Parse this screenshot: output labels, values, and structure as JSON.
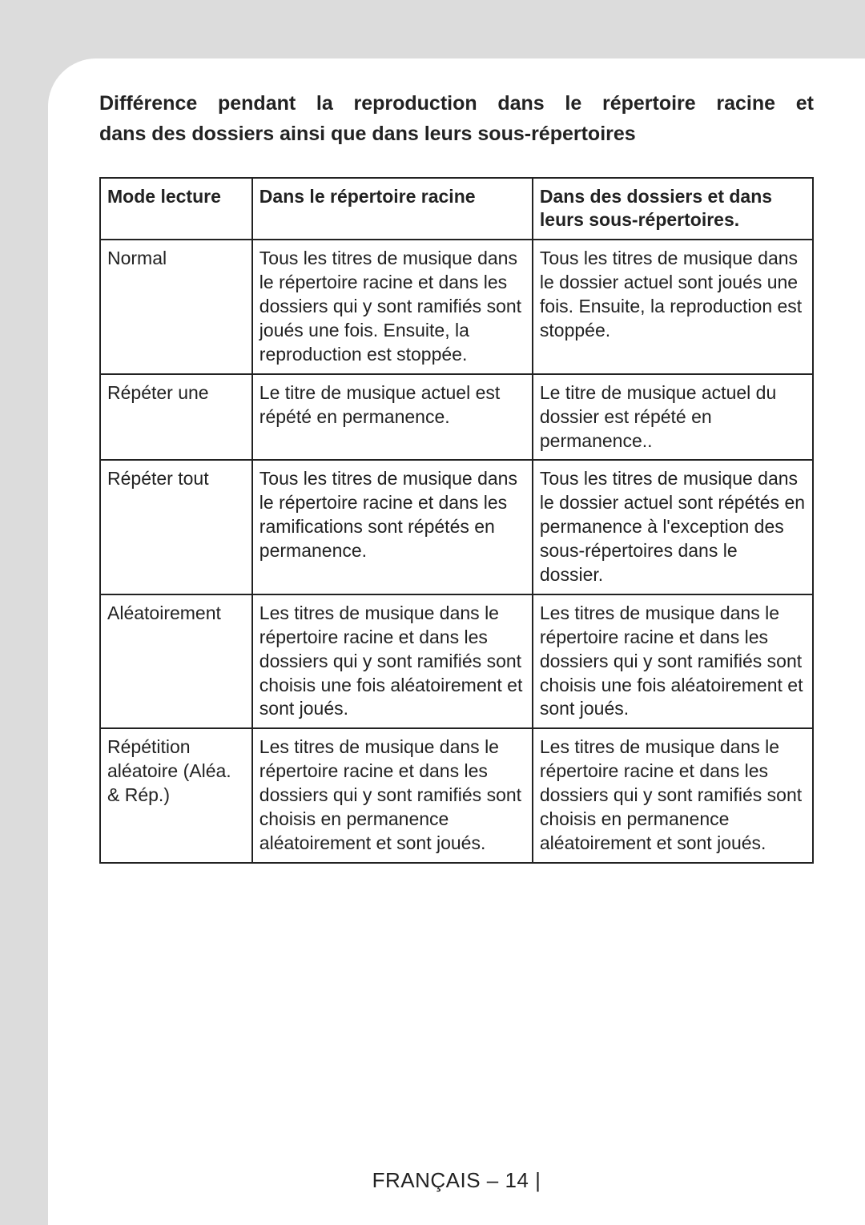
{
  "heading": {
    "line1": "Différence pendant la reproduction dans le répertoire racine et",
    "line2": "dans des dossiers ainsi que dans leurs sous-répertoires"
  },
  "table": {
    "headers": {
      "col1": "Mode lecture",
      "col2": "Dans le répertoire racine",
      "col3": "Dans des dossiers et dans leurs sous-répertoires."
    },
    "rows": [
      {
        "mode": "Normal",
        "root": "Tous les titres de musique dans le répertoire racine et dans les dossiers qui y sont ramifiés sont joués une fois. Ensuite, la reproduction est stoppée.",
        "folder": "Tous les titres de musique dans le dossier actuel sont joués une fois. Ensuite, la reproduction est stoppée."
      },
      {
        "mode": "Répéter une",
        "root": "Le titre de musique actuel est répété en permanence.",
        "folder": "Le titre de musique actuel du dossier est répété en permanence.."
      },
      {
        "mode": "Répéter tout",
        "root": "Tous les titres de musique dans le répertoire racine et dans les ramifications sont répétés en permanence.",
        "folder": "Tous les titres de musique dans le dossier actuel sont répétés en permanence à l'exception des sous-répertoires dans le dossier."
      },
      {
        "mode": "Aléatoirement",
        "root": "Les titres de musique dans le répertoire racine et dans les dossiers qui y sont ramifiés sont choisis une fois aléatoirement et sont joués.",
        "folder": "Les titres de musique dans le répertoire racine et dans les dossiers qui y sont ramifiés sont choisis une fois aléatoirement et sont joués."
      },
      {
        "mode": "Répétition aléatoire (Aléa. & Rép.)",
        "root": "Les titres de musique dans le répertoire racine et dans les dossiers qui y sont ramifiés sont choisis en permanence aléatoirement et sont joués.",
        "folder": "Les titres de musique dans le répertoire racine et dans les dossiers qui y sont ramifiés sont choisis en permanence aléatoirement et sont joués."
      }
    ]
  },
  "footer": "FRANÇAIS – 14  |"
}
